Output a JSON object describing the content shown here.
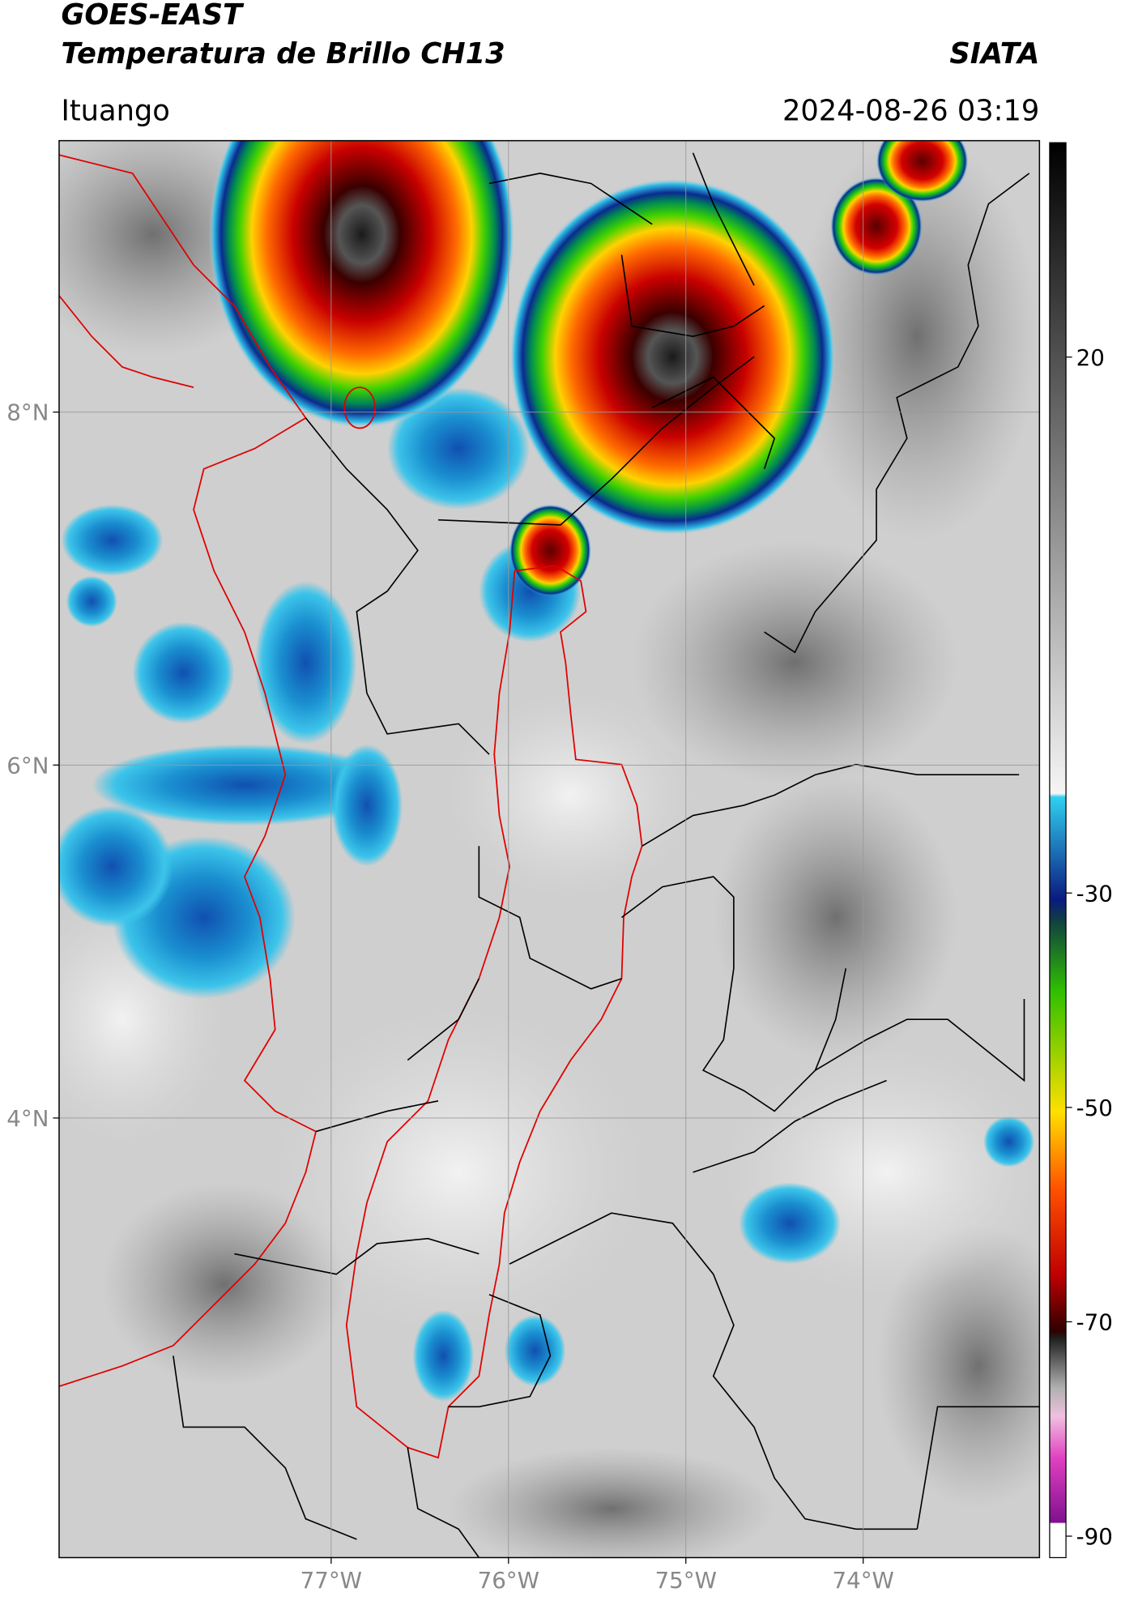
{
  "header": {
    "title": "GOES-EAST",
    "product": "Temperatura de Brillo CH13",
    "source": "SIATA",
    "location": "Ituango",
    "datetime": "2024-08-26 03:19"
  },
  "map": {
    "xlim": [
      -78.534,
      -73.006
    ],
    "ylim": [
      1.509,
      9.538
    ],
    "xticks": [
      {
        "value": -77,
        "label": "77°W"
      },
      {
        "value": -76,
        "label": "76°W"
      },
      {
        "value": -75,
        "label": "75°W"
      },
      {
        "value": -74,
        "label": "74°W"
      }
    ],
    "yticks": [
      {
        "value": 8,
        "label": "8°N"
      },
      {
        "value": 6,
        "label": "6°N"
      },
      {
        "value": 4,
        "label": "4°N"
      }
    ],
    "grid": true
  },
  "colorbar": {
    "lim": [
      40,
      -92
    ],
    "ticks": [
      20,
      -30,
      -50,
      -70,
      -90
    ]
  }
}
